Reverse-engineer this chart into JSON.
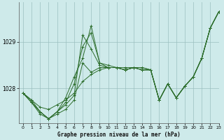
{
  "title": "Graphe pression niveau de la mer (hPa)",
  "bg_color": "#ceeaea",
  "grid_color": "#9bbfbf",
  "line_color": "#2d6e2d",
  "ylim": [
    1027.25,
    1029.85
  ],
  "xlim": [
    -0.5,
    23
  ],
  "yticks": [
    1028,
    1029
  ],
  "xticks": [
    0,
    1,
    2,
    3,
    4,
    5,
    6,
    7,
    8,
    9,
    10,
    11,
    12,
    13,
    14,
    15,
    16,
    17,
    18,
    19,
    20,
    21,
    22,
    23
  ],
  "series": [
    [
      1027.9,
      1027.75,
      1027.6,
      1027.55,
      1027.65,
      1027.75,
      1027.9,
      1028.15,
      1028.3,
      1028.4,
      1028.45,
      1028.45,
      1028.45,
      1028.45,
      1028.45,
      1028.4,
      1027.75,
      1028.1,
      1027.8,
      1028.05,
      1028.25,
      1028.65,
      1029.3,
      1029.65
    ],
    [
      1027.9,
      1027.75,
      1027.5,
      1027.35,
      1027.45,
      1027.55,
      1027.75,
      1028.55,
      1028.35,
      1028.45,
      1028.45,
      1028.45,
      1028.4,
      1028.45,
      1028.45,
      1028.4,
      1027.75,
      1028.1,
      1027.8,
      1028.05,
      1028.25,
      1028.65,
      1029.3,
      1029.65
    ],
    [
      1027.9,
      1027.7,
      1027.5,
      1027.35,
      1027.5,
      1027.65,
      1027.85,
      1029.15,
      1028.85,
      1028.5,
      1028.45,
      1028.45,
      1028.4,
      1028.45,
      1028.4,
      1028.4,
      1027.75,
      1028.1,
      1027.8,
      1028.05,
      1028.25,
      1028.65,
      1029.3,
      1029.65
    ],
    [
      1027.9,
      1027.7,
      1027.5,
      1027.35,
      1027.5,
      1027.7,
      1028.1,
      1028.9,
      1029.2,
      1028.55,
      1028.45,
      1028.45,
      1028.4,
      1028.45,
      1028.4,
      1028.4,
      1027.75,
      1028.1,
      1027.8,
      1028.05,
      1028.25,
      1028.65,
      1029.3,
      1029.65
    ],
    [
      1027.9,
      1027.7,
      1027.45,
      1027.35,
      1027.5,
      1027.8,
      1028.25,
      1028.65,
      1029.35,
      1028.55,
      1028.5,
      1028.45,
      1028.4,
      1028.45,
      1028.4,
      1028.4,
      1027.75,
      1028.1,
      1027.8,
      1028.05,
      1028.25,
      1028.65,
      1029.3,
      1029.65
    ]
  ]
}
